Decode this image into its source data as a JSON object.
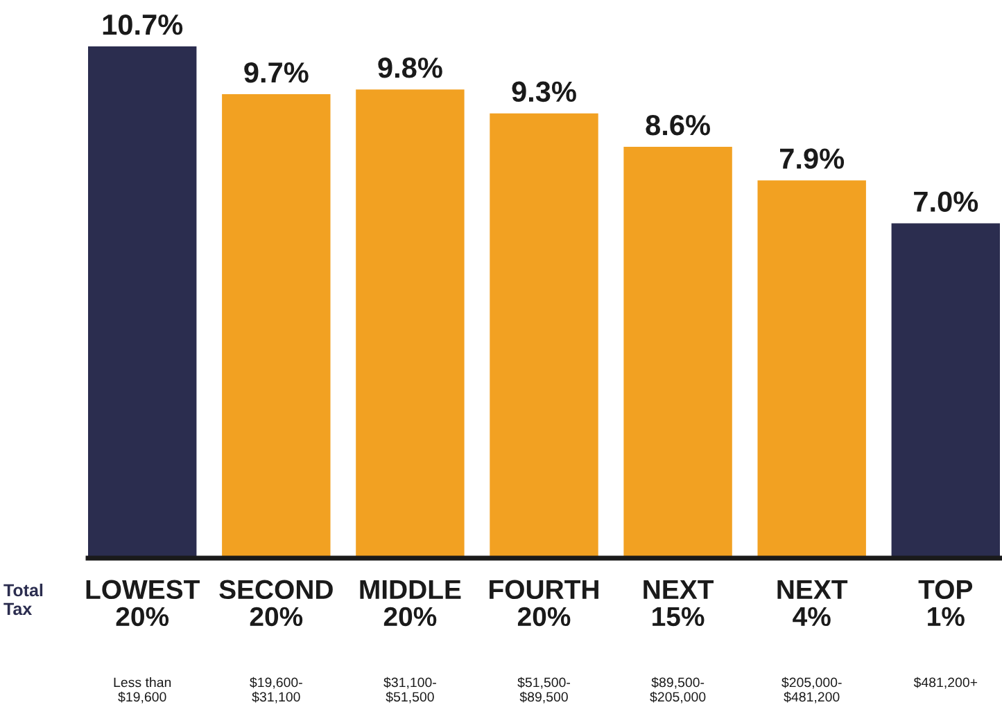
{
  "chart_data": {
    "type": "bar",
    "categories": [
      "LOWEST\n20%",
      "SECOND\n20%",
      "MIDDLE\n20%",
      "FOURTH\n20%",
      "NEXT\n15%",
      "NEXT\n4%",
      "TOP\n1%"
    ],
    "values": [
      10.7,
      9.7,
      9.8,
      9.3,
      8.6,
      7.9,
      7.0
    ],
    "colors": [
      "#2b2d4f",
      "#f2a122",
      "#f2a122",
      "#f2a122",
      "#f2a122",
      "#f2a122",
      "#2b2d4f"
    ],
    "value_labels": [
      "10.7%",
      "9.7%",
      "9.8%",
      "9.3%",
      "8.6%",
      "7.9%",
      "7.0%"
    ],
    "annotations": [
      "Total\nTax",
      "Less than\n$19,600",
      "$19,600-\n$31,100",
      "$31,100-\n$51,500",
      "$51,500-\n$89,500",
      "$89,500-\n$205,000",
      "$205,000-\n$481,200",
      "$481,200+"
    ],
    "tick_labels": "x",
    "grid": false,
    "legend": false
  }
}
